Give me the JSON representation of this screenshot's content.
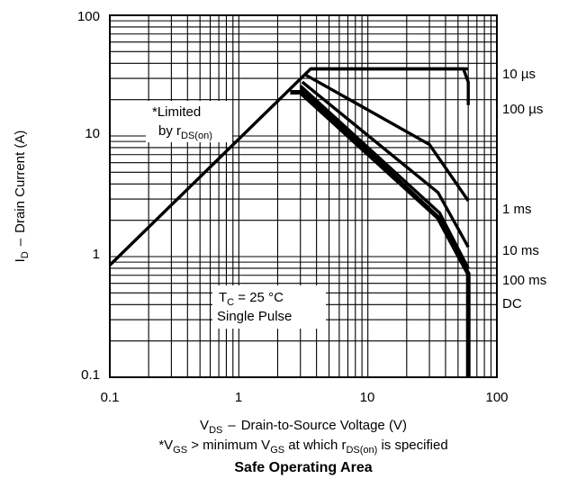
{
  "chart_data": {
    "type": "line",
    "title": "Safe Operating Area",
    "xlabel": "Drain-to-Source Voltage (V)",
    "xlabel_symbol": "V",
    "xlabel_symbol_sub": "DS",
    "xlabel_sep": "–",
    "ylabel": "Drain Current (A)",
    "ylabel_symbol": "I",
    "ylabel_symbol_sub": "D",
    "ylabel_sep": "–",
    "xscale": "log",
    "yscale": "log",
    "xlim": [
      0.1,
      100
    ],
    "ylim": [
      0.1,
      100
    ],
    "grid": true,
    "x_ticks": [
      "0.1",
      "1",
      "10",
      "100"
    ],
    "y_ticks": [
      "100",
      "10",
      "1",
      "0.1"
    ],
    "footnote": {
      "p1": "*V",
      "s1": "GS",
      "p2": " > minimum V",
      "s2": "GS",
      "p3": " at which r",
      "s3": "DS(on)",
      "p4": " is specified"
    },
    "annotations": {
      "limited_line1": "*Limited",
      "limited_line2_prefix": "by r",
      "limited_line2_sub": "DS(on)",
      "tc_prefix": "T",
      "tc_sub": "C",
      "tc_suffix": " = 25 °C",
      "single_pulse": "Single Pulse"
    },
    "series": [
      {
        "name": "10 µs",
        "x": [
          3.6,
          55,
          60,
          60
        ],
        "y": [
          36,
          36,
          28,
          18
        ]
      },
      {
        "name": "100 µs",
        "x": [
          3.3,
          30,
          60
        ],
        "y": [
          32,
          8.5,
          2.9
        ]
      },
      {
        "name": "1 ms",
        "x": [
          3.1,
          35,
          60
        ],
        "y": [
          28,
          3.4,
          1.2
        ]
      },
      {
        "name": "10 ms",
        "x": [
          3.0,
          36,
          60
        ],
        "y": [
          26,
          2.3,
          0.8
        ]
      },
      {
        "name": "100 ms",
        "x": [
          3.0,
          35,
          60
        ],
        "y": [
          25,
          2.15,
          0.73
        ]
      },
      {
        "name": "DC",
        "x": [
          2.5,
          3.0,
          35,
          60,
          60
        ],
        "y": [
          23,
          23,
          2.1,
          0.72,
          0.1
        ]
      }
    ],
    "limit_lines": [
      {
        "x": [
          0.1,
          3.6,
          60
        ],
        "y": [
          0.85,
          36,
          36
        ]
      }
    ],
    "colors": {
      "line": "#000000",
      "grid": "#000000",
      "background": "#ffffff"
    }
  }
}
